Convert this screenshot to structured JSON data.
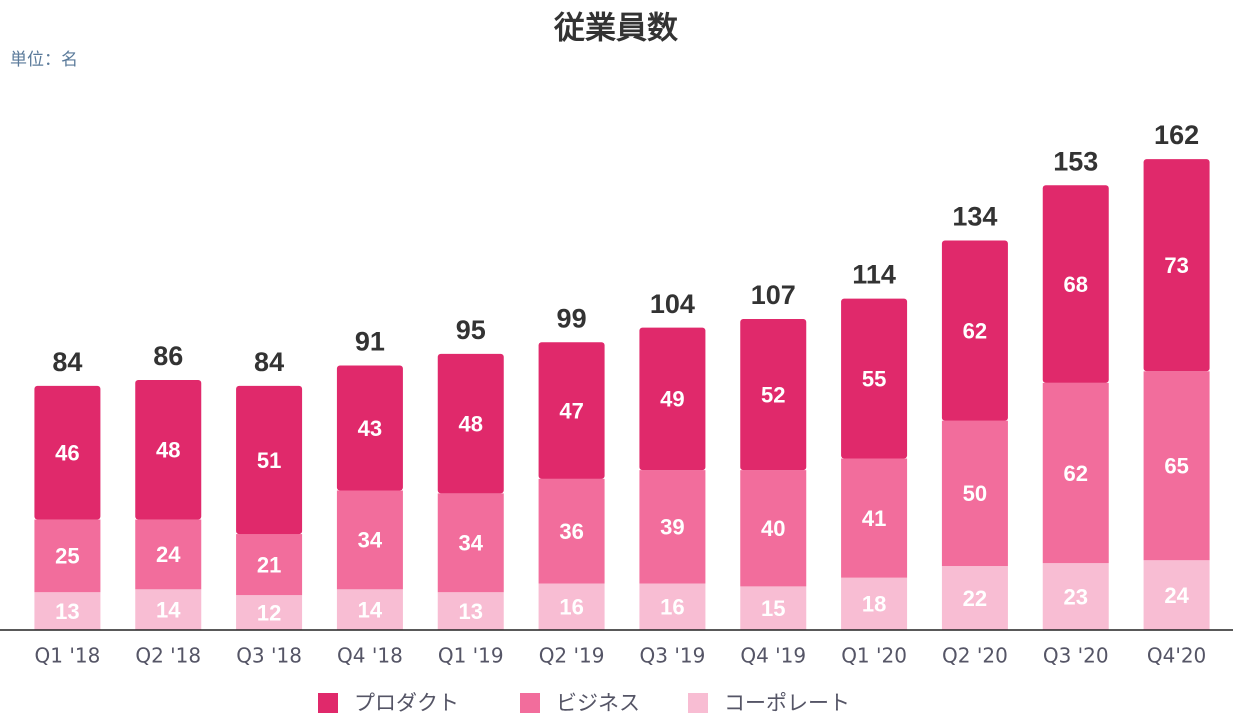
{
  "chart_data": {
    "type": "stacked_bar",
    "title": "従業員数",
    "subtitle": "単位：名",
    "categories": [
      "Q1 '18",
      "Q2 '18",
      "Q3 '18",
      "Q4 '18",
      "Q1 '19",
      "Q2 '19",
      "Q3 '19",
      "Q4 '19",
      "Q1 '20",
      "Q2 '20",
      "Q3 '20",
      "Q4'20"
    ],
    "series": [
      {
        "name": "プロダクト",
        "color": "#e0296b",
        "values": [
          46,
          48,
          51,
          43,
          48,
          47,
          49,
          52,
          55,
          62,
          68,
          73
        ]
      },
      {
        "name": "ビジネス",
        "color": "#f26d9c",
        "values": [
          25,
          24,
          21,
          34,
          34,
          36,
          39,
          40,
          41,
          50,
          62,
          65
        ]
      },
      {
        "name": "コーポレート",
        "color": "#f8bdd3",
        "values": [
          13,
          14,
          12,
          14,
          13,
          16,
          16,
          15,
          18,
          22,
          23,
          24
        ]
      }
    ],
    "totals": [
      84,
      86,
      84,
      91,
      95,
      99,
      104,
      107,
      114,
      134,
      153,
      162
    ],
    "ylim": [
      0,
      172
    ],
    "legend": "bottom"
  }
}
